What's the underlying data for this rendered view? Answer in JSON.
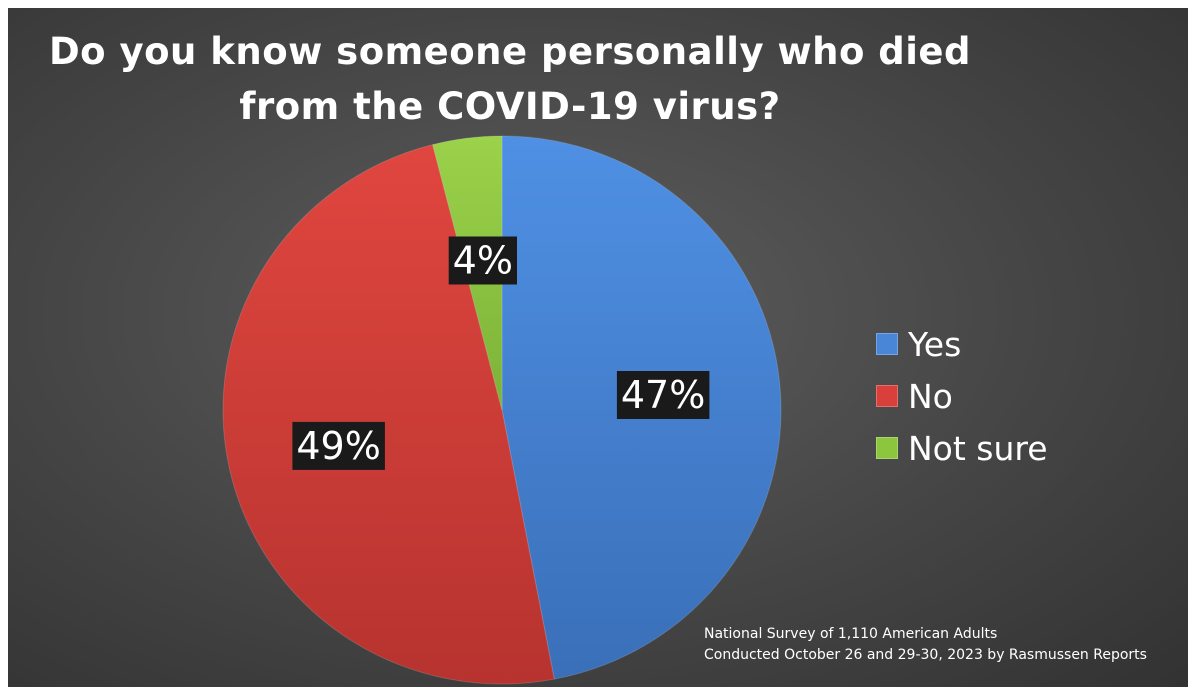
{
  "chart_data": {
    "type": "pie",
    "title": [
      "Do you know someone personally who died",
      "from the COVID-19 virus?"
    ],
    "categories": [
      "Yes",
      "No",
      "Not sure"
    ],
    "values": [
      47,
      49,
      4
    ],
    "value_labels": [
      "47%",
      "49%",
      "4%"
    ],
    "colors": [
      "#4a86d8",
      "#d9403c",
      "#8cc63f"
    ],
    "legend_position": "right",
    "note": [
      "National Survey of 1,110 American Adults",
      "Conducted October 26 and 29-30, 2023 by Rasmussen Reports"
    ]
  }
}
